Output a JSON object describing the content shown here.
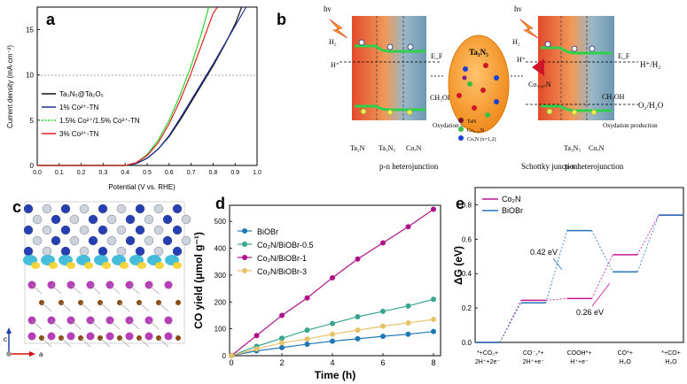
{
  "panels": {
    "a": {
      "label": "a"
    },
    "b": {
      "label": "b"
    },
    "c": {
      "label": "c"
    },
    "d": {
      "label": "d"
    },
    "e": {
      "label": "e"
    }
  },
  "chart_data": [
    {
      "id": "a",
      "type": "line",
      "xlabel": "Potential (V vs. RHE)",
      "ylabel": "Current density (mA·cm⁻²)",
      "xlim": [
        0.0,
        1.0
      ],
      "ylim": [
        0,
        17.5
      ],
      "xticks": [
        "0.0",
        "0.1",
        "0.2",
        "0.3",
        "0.4",
        "0.5",
        "0.6",
        "0.7",
        "0.8",
        "0.9",
        "1.0"
      ],
      "yticks": [
        "0",
        "5",
        "10",
        "15"
      ],
      "reference_line_y": 10,
      "series": [
        {
          "name": "Ta₃N₅@Ta₂O₅",
          "color": "#111111",
          "x": [
            0.0,
            0.4,
            0.45,
            0.5,
            0.55,
            0.6,
            0.65,
            0.7,
            0.75,
            0.8,
            0.85,
            0.9,
            0.93
          ],
          "y": [
            0,
            0,
            0.2,
            0.8,
            1.8,
            3.2,
            5.0,
            7.0,
            9.0,
            11.0,
            13.2,
            15.6,
            17.5
          ]
        },
        {
          "name": "1% Co²⁺-TN",
          "color": "#1f2f8f",
          "x": [
            0.0,
            0.4,
            0.45,
            0.5,
            0.55,
            0.6,
            0.65,
            0.7,
            0.75,
            0.8,
            0.85,
            0.9,
            0.95
          ],
          "y": [
            0,
            0,
            0.2,
            0.8,
            1.8,
            3.3,
            5.2,
            7.2,
            9.2,
            11.2,
            13.3,
            15.4,
            17.5
          ]
        },
        {
          "name": "1.5% Co²⁺/1.5% Co³⁺-TN",
          "color": "#2bd62b",
          "x": [
            0.0,
            0.4,
            0.45,
            0.5,
            0.55,
            0.6,
            0.65,
            0.7,
            0.75,
            0.78
          ],
          "y": [
            0,
            0,
            0.3,
            1.2,
            2.8,
            5.0,
            7.8,
            11.0,
            14.8,
            17.5
          ]
        },
        {
          "name": "3% Co³⁺-TN",
          "color": "#e02020",
          "x": [
            0.0,
            0.4,
            0.45,
            0.5,
            0.55,
            0.6,
            0.65,
            0.7,
            0.75,
            0.8,
            0.82
          ],
          "y": [
            0,
            0,
            0.3,
            1.1,
            2.5,
            4.6,
            7.2,
            10.2,
            13.5,
            16.8,
            17.5
          ]
        }
      ]
    },
    {
      "id": "d",
      "type": "line",
      "xlabel": "Time (h)",
      "ylabel": "CO yield (μmol g⁻¹)",
      "xlim": [
        0,
        8
      ],
      "ylim": [
        0,
        560
      ],
      "xticks": [
        "0",
        "2",
        "4",
        "6",
        "8"
      ],
      "yticks": [
        "0",
        "100",
        "200",
        "300",
        "400",
        "500"
      ],
      "series": [
        {
          "name": "BiOBr",
          "color": "#1f77b4",
          "x": [
            0,
            1,
            2,
            3,
            4,
            5,
            6,
            7,
            8
          ],
          "y": [
            0,
            18,
            30,
            43,
            54,
            63,
            72,
            80,
            90
          ]
        },
        {
          "name": "Co₂N/BiOBr-0.5",
          "color": "#3aa58f",
          "x": [
            0,
            1,
            2,
            3,
            4,
            5,
            6,
            7,
            8
          ],
          "y": [
            0,
            35,
            65,
            95,
            120,
            145,
            165,
            185,
            210
          ]
        },
        {
          "name": "Co₂N/BiOBr-1",
          "color": "#b0108a",
          "x": [
            0,
            1,
            2,
            3,
            4,
            5,
            6,
            7,
            8
          ],
          "y": [
            0,
            75,
            150,
            215,
            290,
            360,
            420,
            480,
            545
          ]
        },
        {
          "name": "Co₂N/BiOBr-3",
          "color": "#e8c268",
          "x": [
            0,
            1,
            2,
            3,
            4,
            5,
            6,
            7,
            8
          ],
          "y": [
            0,
            25,
            48,
            62,
            80,
            95,
            110,
            122,
            135
          ]
        }
      ]
    },
    {
      "id": "e",
      "type": "line",
      "ylabel": "ΔG (eV)",
      "ylim": [
        0,
        0.9
      ],
      "yticks": [
        "0.0",
        "0.2",
        "0.4",
        "0.6",
        "0.8"
      ],
      "categories": [
        "*+CO₂+ 2H⁺+2e⁻",
        "CO⁻₂*+ 2H⁺+e⁻",
        "COOH*+ H⁺+e⁻",
        "CO*+ H₂O",
        "*+CO+ H₂O"
      ],
      "series": [
        {
          "name": "Co₂N",
          "color": "#c4148f",
          "values": [
            0.0,
            0.245,
            0.255,
            0.51,
            0.74
          ]
        },
        {
          "name": "BiOBr",
          "color": "#2673b8",
          "values": [
            0.0,
            0.23,
            0.65,
            0.41,
            0.74
          ]
        }
      ],
      "annotations": [
        "0.42 eV",
        "0.26 eV"
      ]
    }
  ],
  "schematic": {
    "hv_left": "hν",
    "hv_right": "hν",
    "h2": "H₂",
    "hplus": "H⁺",
    "ef": "E_F",
    "ch3oh": "CH₃OH",
    "oxidation": "Oxydation production",
    "ta2n": "Ta₂N",
    "ta3n5": "Ta₃N₅",
    "coxn": "CoₓN",
    "pn": "p-n heterojunction",
    "schottky": "Schottky junction",
    "ta3n5_particle": "Ta₃N₅",
    "co547n": "Co₅.₄₇N",
    "hplus_h2": "H⁺/H₂",
    "o2_h2o": "O₂/H₂O",
    "legend_tan": "TaN",
    "legend_co": "Co₅.₄₇N",
    "legend_coxn": "CoₓN (x=1,2)"
  },
  "structure": {
    "axis_c": "c",
    "axis_a": "a"
  }
}
